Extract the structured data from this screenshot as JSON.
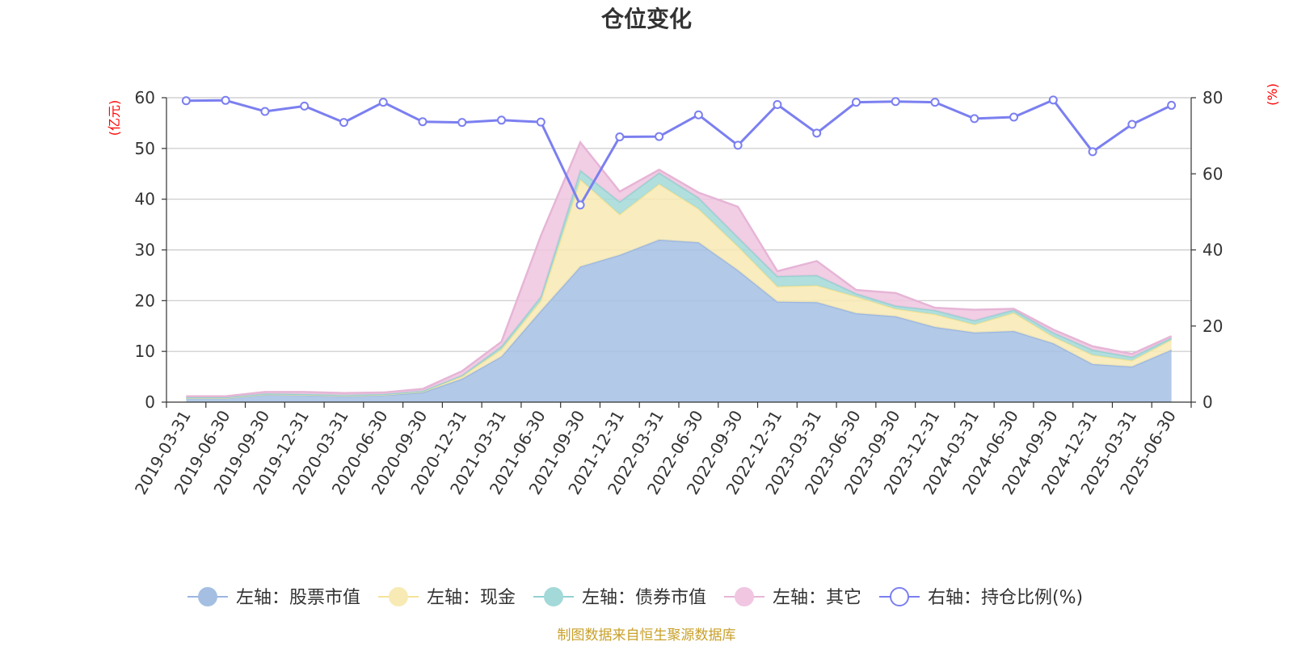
{
  "chart_data": {
    "type": "area",
    "title": "仓位变化",
    "left_axis": {
      "unit": "(亿元)",
      "ylim": [
        0,
        60
      ],
      "ticks": [
        0,
        10,
        20,
        30,
        40,
        50,
        60
      ]
    },
    "right_axis": {
      "unit": "(%)",
      "ylim": [
        0,
        80
      ],
      "ticks": [
        0,
        20,
        40,
        60,
        80
      ]
    },
    "categories": [
      "2019-03-31",
      "2019-06-30",
      "2019-09-30",
      "2019-12-31",
      "2020-03-31",
      "2020-06-30",
      "2020-09-30",
      "2020-12-31",
      "2021-03-31",
      "2021-06-30",
      "2021-09-30",
      "2021-12-31",
      "2022-03-31",
      "2022-06-30",
      "2022-09-30",
      "2022-12-31",
      "2023-03-31",
      "2023-06-30",
      "2023-09-30",
      "2023-12-31",
      "2024-03-31",
      "2024-06-30",
      "2024-09-30",
      "2024-12-31",
      "2025-03-31",
      "2025-06-30"
    ],
    "series": [
      {
        "name": "左轴：股票市值",
        "axis": "left",
        "stacked": true,
        "color": "#a5bfe3",
        "line_color": "#9bb6e0",
        "values": [
          0.8,
          0.8,
          1.5,
          1.4,
          1.2,
          1.4,
          1.9,
          4.6,
          9.0,
          18.0,
          26.7,
          29.0,
          32.0,
          31.5,
          26.0,
          19.8,
          19.7,
          17.5,
          16.9,
          14.8,
          13.7,
          14.0,
          11.6,
          7.5,
          7.0,
          10.3
        ]
      },
      {
        "name": "左轴：现金",
        "axis": "left",
        "stacked": true,
        "color": "#f8eab4",
        "line_color": "#f5e39a",
        "values": [
          0.05,
          0.05,
          0.1,
          0.1,
          0.1,
          0.1,
          0.2,
          0.5,
          1.4,
          2.0,
          17.2,
          8.0,
          11.0,
          6.6,
          4.7,
          3.0,
          3.3,
          3.3,
          1.5,
          2.5,
          1.6,
          3.6,
          1.3,
          1.8,
          1.2,
          2.0
        ]
      },
      {
        "name": "左轴：债券市值",
        "axis": "left",
        "stacked": true,
        "color": "#a3d9d8",
        "line_color": "#93d0d0",
        "values": [
          0.1,
          0.1,
          0.1,
          0.1,
          0.1,
          0.1,
          0.1,
          0.2,
          0.6,
          0.8,
          1.8,
          2.5,
          2.2,
          2.2,
          1.8,
          2.0,
          2.0,
          0.6,
          0.6,
          0.8,
          0.8,
          0.6,
          0.8,
          1.0,
          0.7,
          0.4
        ]
      },
      {
        "name": "左轴：其它",
        "axis": "left",
        "stacked": true,
        "color": "#f0c6e1",
        "line_color": "#e6b5d6",
        "values": [
          0.2,
          0.2,
          0.3,
          0.4,
          0.4,
          0.3,
          0.4,
          0.8,
          0.9,
          12.0,
          5.5,
          2.0,
          0.6,
          1.0,
          6.0,
          1.0,
          2.8,
          0.7,
          2.5,
          0.5,
          2.1,
          0.2,
          0.6,
          0.7,
          0.6,
          0.3
        ]
      },
      {
        "name": "右轴：持仓比例(%)",
        "axis": "right",
        "type": "line",
        "color": "#7b7ff0",
        "values": [
          79.2,
          79.3,
          76.4,
          77.8,
          73.5,
          78.8,
          73.7,
          73.5,
          74.1,
          73.6,
          51.8,
          69.7,
          69.8,
          75.5,
          67.5,
          78.2,
          70.7,
          78.8,
          79.0,
          78.8,
          74.5,
          74.9,
          79.4,
          65.8,
          73.0,
          78.0
        ]
      }
    ],
    "grid": true,
    "legend": "bottom-center",
    "source_note": "制图数据来自恒生聚源数据库"
  }
}
